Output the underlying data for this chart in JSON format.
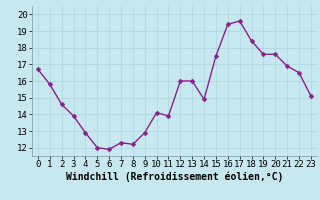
{
  "x": [
    0,
    1,
    2,
    3,
    4,
    5,
    6,
    7,
    8,
    9,
    10,
    11,
    12,
    13,
    14,
    15,
    16,
    17,
    18,
    19,
    20,
    21,
    22,
    23
  ],
  "y": [
    16.7,
    15.8,
    14.6,
    13.9,
    12.9,
    12.0,
    11.9,
    12.3,
    12.2,
    12.9,
    14.1,
    13.9,
    16.0,
    16.0,
    14.9,
    17.5,
    19.4,
    19.6,
    18.4,
    17.6,
    17.6,
    16.9,
    16.5,
    15.1
  ],
  "line_color": "#882288",
  "marker_color": "#882288",
  "bg_color": "#c8e8f0",
  "grid_color": "#b0d8e8",
  "xlabel": "Windchill (Refroidissement éolien,°C)",
  "xlim": [
    -0.5,
    23.5
  ],
  "ylim": [
    11.5,
    20.5
  ],
  "yticks": [
    12,
    13,
    14,
    15,
    16,
    17,
    18,
    19,
    20
  ],
  "xticks": [
    0,
    1,
    2,
    3,
    4,
    5,
    6,
    7,
    8,
    9,
    10,
    11,
    12,
    13,
    14,
    15,
    16,
    17,
    18,
    19,
    20,
    21,
    22,
    23
  ],
  "xlabel_fontsize": 7,
  "tick_fontsize": 6.5,
  "marker_size": 2.5,
  "line_width": 1.0
}
